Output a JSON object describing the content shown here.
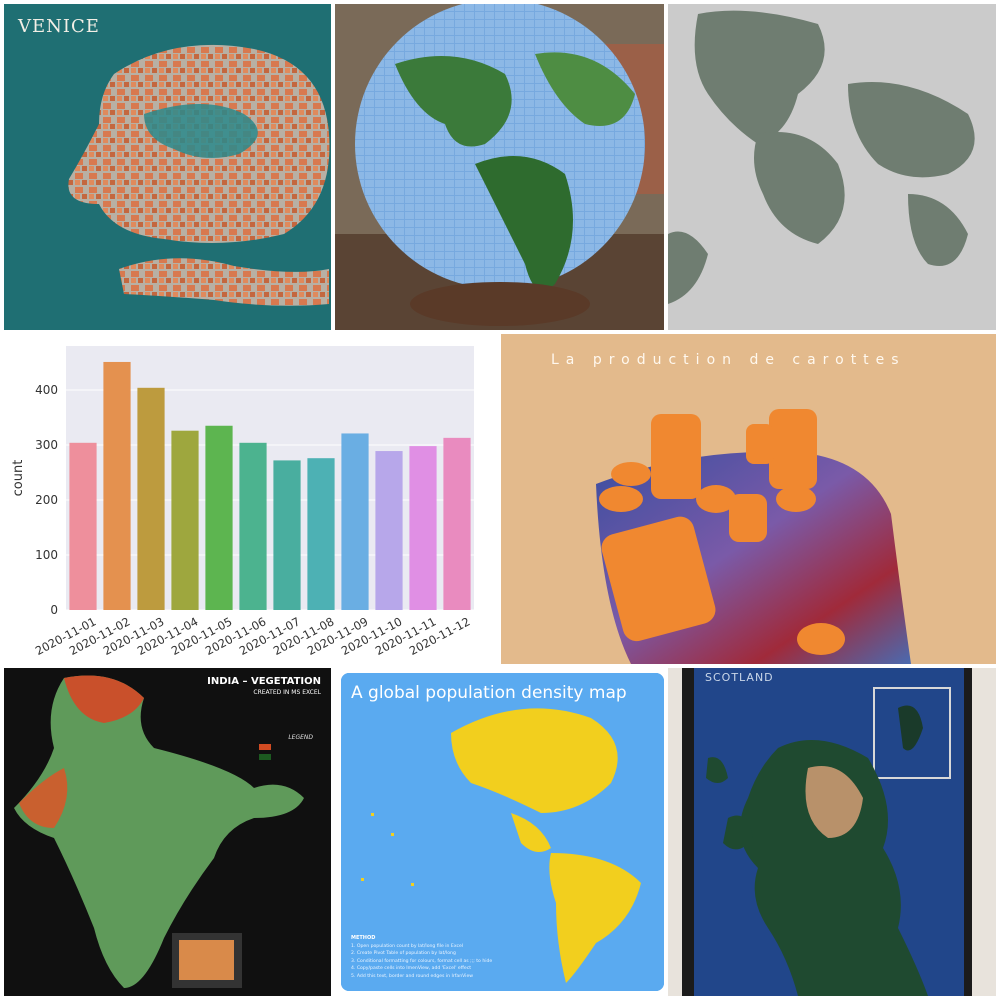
{
  "tiles": {
    "venice": {
      "title": "VENICE"
    },
    "carrots": {
      "title": "La production de carottes"
    },
    "india": {
      "title": "INDIA – VEGETATION",
      "subtitle": "CREATED IN MS EXCEL",
      "legend_title": "LEGEND"
    },
    "popden": {
      "title": "A global population density map",
      "method_title": "METHOD",
      "steps": [
        "1. Open population count by lat/long file in Excel",
        "2. Create Pivot Table of population by lat/long",
        "3. Conditional formatting for colours, format cell as ;;; to hide",
        "4. Copy/paste cells into ImenView, add 'Excel' effect",
        "5. Add this text, border and round edges in IrfanView"
      ]
    },
    "scotland": {
      "title": "SCOTLAND"
    }
  },
  "chart_data": {
    "type": "bar",
    "categories": [
      "2020-11-01",
      "2020-11-02",
      "2020-11-03",
      "2020-11-04",
      "2020-11-05",
      "2020-11-06",
      "2020-11-07",
      "2020-11-08",
      "2020-11-09",
      "2020-11-10",
      "2020-11-11",
      "2020-11-12"
    ],
    "values": [
      304,
      451,
      404,
      326,
      335,
      304,
      272,
      276,
      321,
      289,
      298,
      313
    ],
    "colors": [
      "#ee8f9c",
      "#e4914f",
      "#bd9b3e",
      "#9ea73e",
      "#5db550",
      "#4cb38f",
      "#49ae9f",
      "#4db1b4",
      "#6aaee3",
      "#b7a7ea",
      "#e08fe4",
      "#e98bbf"
    ],
    "ylabel": "count",
    "xlabel": "",
    "ylim": [
      0,
      480
    ],
    "yticks": [
      0,
      100,
      200,
      300,
      400
    ],
    "grid": true
  }
}
